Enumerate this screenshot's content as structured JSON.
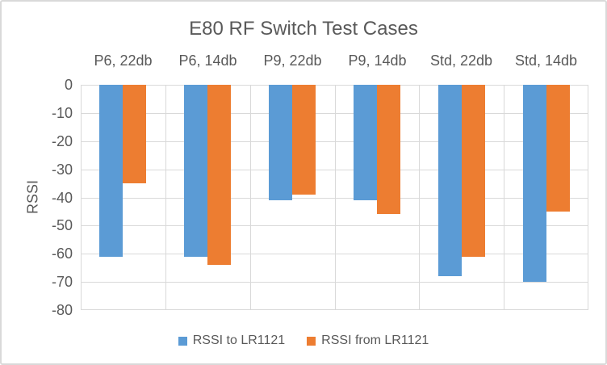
{
  "chart_data": {
    "type": "bar",
    "title": "E80 RF Switch Test Cases",
    "ylabel": "RSSI",
    "xlabel": "",
    "categories": [
      "P6, 22db",
      "P6, 14db",
      "P9, 22db",
      "P9, 14db",
      "Std, 22db",
      "Std, 14db"
    ],
    "series": [
      {
        "name": "RSSI to LR1121",
        "color": "#5B9BD5",
        "values": [
          -61,
          -61,
          -41,
          -41,
          -68,
          -70
        ]
      },
      {
        "name": "RSSI from LR1121",
        "color": "#ED7D31",
        "values": [
          -35,
          -64,
          -39,
          -46,
          -61,
          -45
        ]
      }
    ],
    "ylim": [
      0,
      -80
    ],
    "yticks": [
      0,
      -10,
      -20,
      -30,
      -40,
      -50,
      -60,
      -70,
      -80
    ],
    "grid": true,
    "category_labels_position": "top",
    "legend_position": "bottom"
  },
  "colors": {
    "grid": "#D9D9D9",
    "text": "#595959",
    "background": "#FFFFFF",
    "border": "#D9D9D9"
  }
}
